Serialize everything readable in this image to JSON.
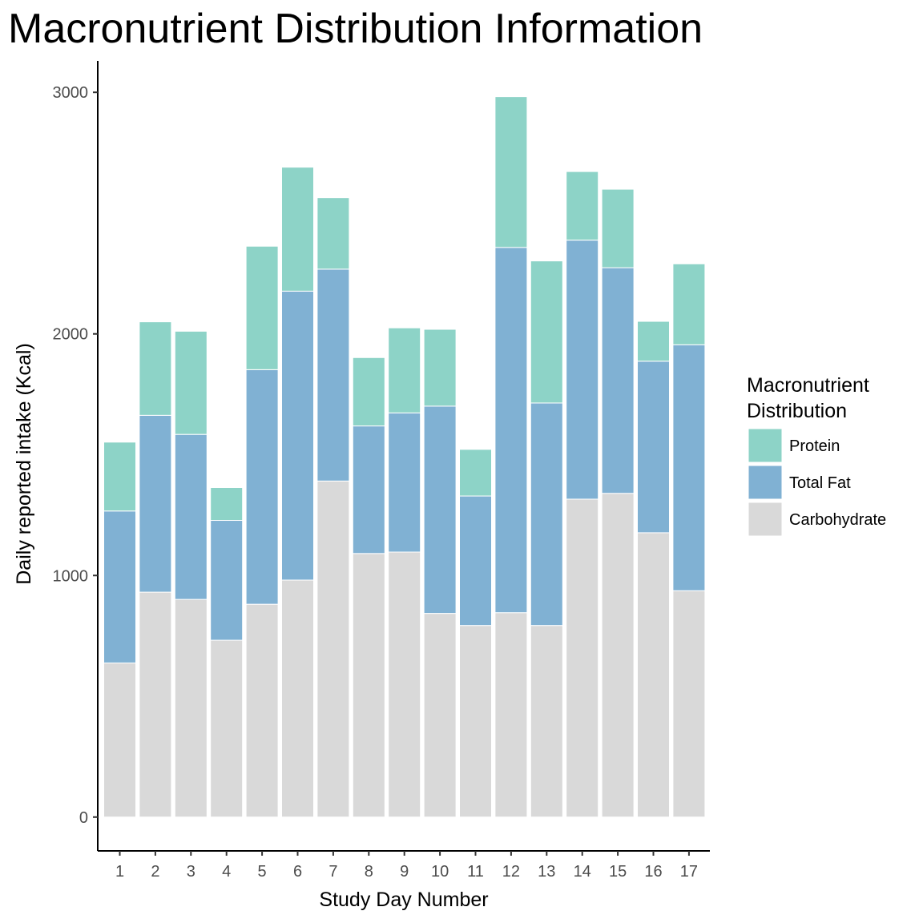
{
  "chart_data": {
    "type": "bar",
    "stacked": true,
    "title": "Macronutrient Distribution Information",
    "xlabel": "Study Day Number",
    "ylabel": "Daily reported intake (Kcal)",
    "categories": [
      "1",
      "2",
      "3",
      "4",
      "5",
      "6",
      "7",
      "8",
      "9",
      "10",
      "11",
      "12",
      "13",
      "14",
      "15",
      "16",
      "17"
    ],
    "ylim": [
      -140,
      3130
    ],
    "yticks": [
      0,
      1000,
      2000,
      3000
    ],
    "ytick_labels": [
      "0",
      "1000",
      "2000",
      "3000"
    ],
    "series": [
      {
        "name": "Carbohydrate",
        "color": "#d9d9d9",
        "values": [
          638,
          931,
          901,
          732,
          881,
          981,
          1391,
          1091,
          1097,
          843,
          793,
          846,
          793,
          1316,
          1340,
          1177,
          937
        ]
      },
      {
        "name": "Total Fat",
        "color": "#80b1d3",
        "values": [
          629,
          732,
          683,
          496,
          971,
          1196,
          877,
          528,
          576,
          858,
          536,
          1512,
          921,
          1072,
          934,
          710,
          1018
        ]
      },
      {
        "name": "Protein",
        "color": "#8dd3c7",
        "values": [
          285,
          387,
          427,
          136,
          511,
          513,
          296,
          283,
          352,
          318,
          193,
          624,
          588,
          284,
          325,
          165,
          335
        ]
      }
    ],
    "legend": {
      "title_lines": [
        "Macronutrient",
        "Distribution"
      ],
      "placement": "right",
      "order": [
        "Protein",
        "Total Fat",
        "Carbohydrate"
      ]
    },
    "grid": false
  }
}
